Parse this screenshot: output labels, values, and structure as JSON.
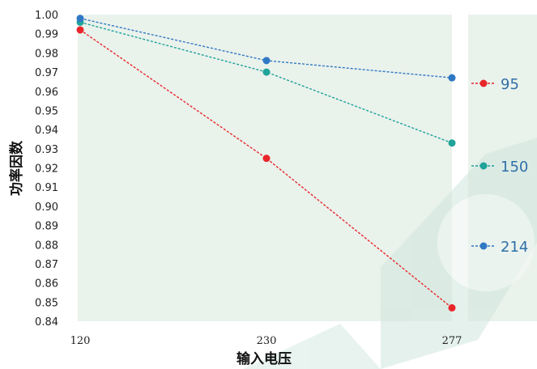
{
  "chart_data": {
    "type": "line",
    "x": [
      "120",
      "230",
      "277"
    ],
    "xlabel": "输入电压",
    "ylabel": "功率因数",
    "ylim": [
      0.84,
      1.0
    ],
    "yticks": [
      "1.00",
      "0.99",
      "0.98",
      "0.97",
      "0.96",
      "0.95",
      "0.94",
      "0.93",
      "0.92",
      "0.91",
      "0.90",
      "0.89",
      "0.88",
      "0.87",
      "0.86",
      "0.85",
      "0.84"
    ],
    "grid": false,
    "legend_position": "right",
    "series": [
      {
        "name": "95",
        "color": "#e8262a",
        "values": [
          0.992,
          0.925,
          0.847
        ]
      },
      {
        "name": "150",
        "color": "#1fa39a",
        "values": [
          0.996,
          0.97,
          0.933
        ]
      },
      {
        "name": "214",
        "color": "#2f78c4",
        "values": [
          0.998,
          0.976,
          0.967
        ]
      }
    ]
  }
}
